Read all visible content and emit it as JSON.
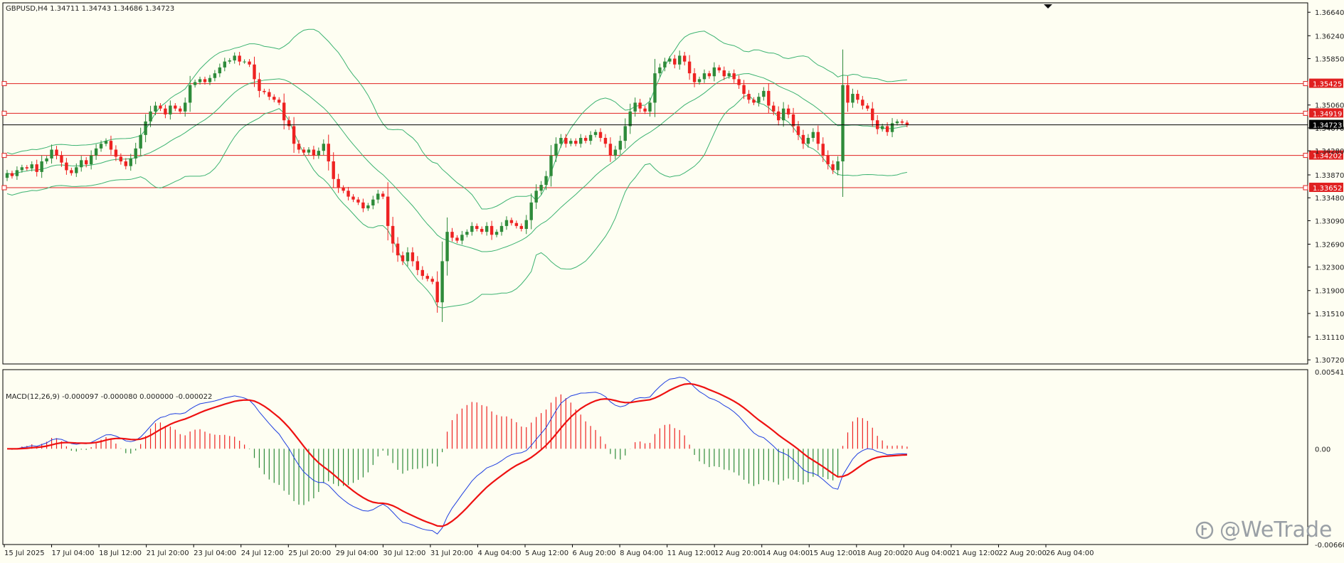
{
  "main": {
    "header": "GBPUSD,H4  1.34711 1.34743 1.34686 1.34723",
    "current_price": "1.34723",
    "price_ticks": [
      "1.36640",
      "1.36240",
      "1.35850",
      "1.35060",
      "1.34670",
      "1.34280",
      "1.33870",
      "1.33480",
      "1.33090",
      "1.32690",
      "1.32300",
      "1.31900",
      "1.31510",
      "1.31110",
      "1.30720"
    ],
    "levels": [
      {
        "price": 1.35425,
        "label": "1.35425"
      },
      {
        "price": 1.34919,
        "label": "1.34919"
      },
      {
        "price": 1.34202,
        "label": "1.34202"
      },
      {
        "price": 1.33652,
        "label": "1.33652"
      }
    ],
    "price_range": [
      1.3065,
      1.368
    ]
  },
  "macd": {
    "label": "MACD(12,26,9) -0.000097 -0.000080 0.000000 -0.000022",
    "ticks": [
      "0.005416",
      "0.00",
      "-0.006609"
    ],
    "range": [
      -0.006609,
      0.005416
    ]
  },
  "time_axis": [
    "15 Jul 2025",
    "17 Jul 04:00",
    "18 Jul 12:00",
    "21 Jul 20:00",
    "23 Jul 04:00",
    "24 Jul 12:00",
    "25 Jul 20:00",
    "29 Jul 04:00",
    "30 Jul 12:00",
    "31 Jul 20:00",
    "4 Aug 04:00",
    "5 Aug 12:00",
    "6 Aug 20:00",
    "8 Aug 04:00",
    "11 Aug 12:00",
    "12 Aug 20:00",
    "14 Aug 04:00",
    "15 Aug 12:00",
    "18 Aug 20:00",
    "20 Aug 04:00",
    "21 Aug 12:00",
    "22 Aug 20:00",
    "26 Aug 04:00"
  ],
  "watermark": "@WeTrade",
  "colors": {
    "background": "#fefef2",
    "bull": "#2e8b3a",
    "bear": "#ee2222",
    "band": "#3cb371",
    "signal": "#ee1111",
    "macd": "#1f3fe0",
    "level": "#e02020",
    "axis_text": "#222222"
  },
  "chart_data": {
    "type": "candlestick",
    "symbol": "GBPUSD",
    "timeframe": "H4",
    "indicators": [
      "Bollinger Bands",
      "MACD(12,26,9)"
    ],
    "closes": [
      1.339,
      1.3385,
      1.3395,
      1.34,
      1.3398,
      1.3405,
      1.3392,
      1.341,
      1.3415,
      1.343,
      1.342,
      1.3408,
      1.3395,
      1.339,
      1.34,
      1.3412,
      1.3405,
      1.342,
      1.3432,
      1.344,
      1.3445,
      1.343,
      1.3418,
      1.341,
      1.3402,
      1.3415,
      1.3432,
      1.3455,
      1.3478,
      1.3495,
      1.3505,
      1.35,
      1.349,
      1.3505,
      1.35,
      1.3495,
      1.351,
      1.354,
      1.3545,
      1.355,
      1.3545,
      1.3552,
      1.356,
      1.357,
      1.358,
      1.3582,
      1.359,
      1.358,
      1.358,
      1.3575,
      1.355,
      1.353,
      1.3528,
      1.352,
      1.3515,
      1.351,
      1.348,
      1.347,
      1.344,
      1.343,
      1.3425,
      1.343,
      1.342,
      1.3428,
      1.344,
      1.341,
      1.338,
      1.3365,
      1.336,
      1.335,
      1.3345,
      1.334,
      1.333,
      1.3335,
      1.3345,
      1.3355,
      1.335,
      1.33,
      1.327,
      1.325,
      1.324,
      1.3255,
      1.324,
      1.3225,
      1.3215,
      1.321,
      1.3205,
      1.317,
      1.324,
      1.329,
      1.328,
      1.3275,
      1.3285,
      1.329,
      1.33,
      1.3295,
      1.329,
      1.33,
      1.3285,
      1.329,
      1.33,
      1.331,
      1.3305,
      1.33,
      1.3295,
      1.331,
      1.334,
      1.336,
      1.337,
      1.3385,
      1.342,
      1.344,
      1.345,
      1.344,
      1.3445,
      1.344,
      1.345,
      1.3445,
      1.3455,
      1.346,
      1.345,
      1.344,
      1.342,
      1.343,
      1.3445,
      1.347,
      1.3495,
      1.351,
      1.35,
      1.3495,
      1.351,
      1.356,
      1.357,
      1.358,
      1.3585,
      1.3575,
      1.359,
      1.358,
      1.356,
      1.3545,
      1.355,
      1.356,
      1.3555,
      1.357,
      1.3565,
      1.3555,
      1.356,
      1.355,
      1.354,
      1.3525,
      1.3515,
      1.351,
      1.352,
      1.353,
      1.3505,
      1.3495,
      1.348,
      1.35,
      1.349,
      1.347,
      1.3455,
      1.344,
      1.345,
      1.346,
      1.344,
      1.342,
      1.3405,
      1.3395,
      1.341,
      1.354,
      1.351,
      1.3525,
      1.3515,
      1.3505,
      1.35,
      1.348,
      1.3465,
      1.347,
      1.346,
      1.3475,
      1.3478,
      1.3476,
      1.3472
    ]
  }
}
